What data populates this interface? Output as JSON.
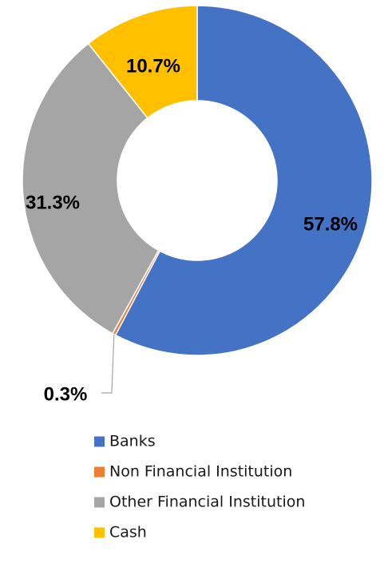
{
  "chart_data": {
    "type": "pie",
    "variant": "donut",
    "title": "",
    "series": [
      {
        "name": "Banks",
        "value": 57.8,
        "label": "57.8%",
        "color": "#4472C4"
      },
      {
        "name": "Non Financial Institution",
        "value": 0.3,
        "label": "0.3%",
        "color": "#ED7D31"
      },
      {
        "name": "Other Financial Institution",
        "value": 31.3,
        "label": "31.3%",
        "color": "#A5A5A5"
      },
      {
        "name": "Cash",
        "value": 10.7,
        "label": "10.7%",
        "color": "#FFC000"
      }
    ],
    "legend": {
      "position": "bottom"
    }
  }
}
